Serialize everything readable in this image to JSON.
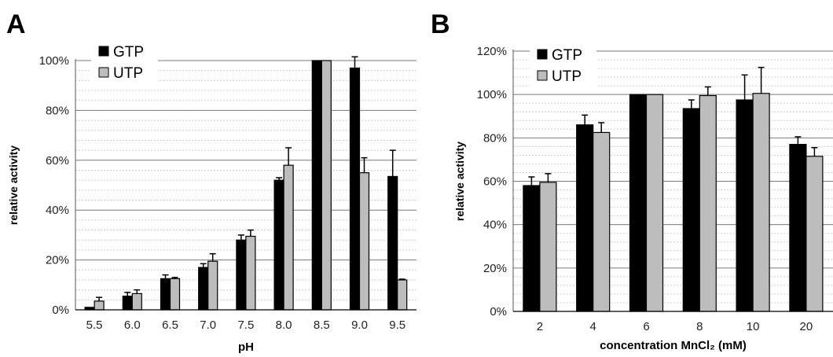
{
  "panels": {
    "a_label": "A",
    "b_label": "B"
  },
  "colors": {
    "gtp": "#000000",
    "utp": "#bdbdbd",
    "grid_major": "#7a7a7a",
    "grid_minor": "#cfcfcf"
  },
  "chart_data": [
    {
      "type": "bar",
      "panel": "A",
      "title": "",
      "xlabel": "pH",
      "ylabel": "relative activity",
      "ylim": [
        0,
        100
      ],
      "yticks": [
        "0%",
        "20%",
        "40%",
        "60%",
        "80%",
        "100%"
      ],
      "ytick_values": [
        0,
        20,
        40,
        60,
        80,
        100
      ],
      "categories": [
        "5.5",
        "6.0",
        "6.5",
        "7.0",
        "7.5",
        "8.0",
        "8.5",
        "9.0",
        "9.5"
      ],
      "legend": "top-left",
      "grid": true,
      "series": [
        {
          "name": "GTP",
          "values": [
            1,
            5.5,
            12.5,
            17,
            28,
            52,
            100,
            97,
            53.5
          ],
          "errors": [
            0,
            1.5,
            1.5,
            1.5,
            2,
            1,
            0,
            4.5,
            10.5
          ]
        },
        {
          "name": "UTP",
          "values": [
            3.5,
            6.5,
            12.5,
            19.5,
            29.5,
            58,
            100,
            55,
            12
          ],
          "errors": [
            1.5,
            1.5,
            0.5,
            3,
            2.5,
            7,
            0,
            6,
            0.3
          ]
        }
      ]
    },
    {
      "type": "bar",
      "panel": "B",
      "title": "",
      "xlabel": "concentration MnCl₂ (mM)",
      "ylabel": "relative activity",
      "ylim": [
        0,
        120
      ],
      "yticks": [
        "0%",
        "20%",
        "40%",
        "60%",
        "80%",
        "100%",
        "120%"
      ],
      "ytick_values": [
        0,
        20,
        40,
        60,
        80,
        100,
        120
      ],
      "categories": [
        "2",
        "4",
        "6",
        "8",
        "10",
        "20"
      ],
      "legend": "top-left",
      "grid": true,
      "series": [
        {
          "name": "GTP",
          "values": [
            58,
            86,
            100,
            93.5,
            97.5,
            77
          ],
          "errors": [
            4,
            4.5,
            0,
            4,
            11.5,
            3.5
          ]
        },
        {
          "name": "UTP",
          "values": [
            59.5,
            82.5,
            100,
            99.5,
            100.5,
            71.5
          ],
          "errors": [
            4,
            4.5,
            0,
            4,
            12,
            4
          ]
        }
      ]
    }
  ]
}
